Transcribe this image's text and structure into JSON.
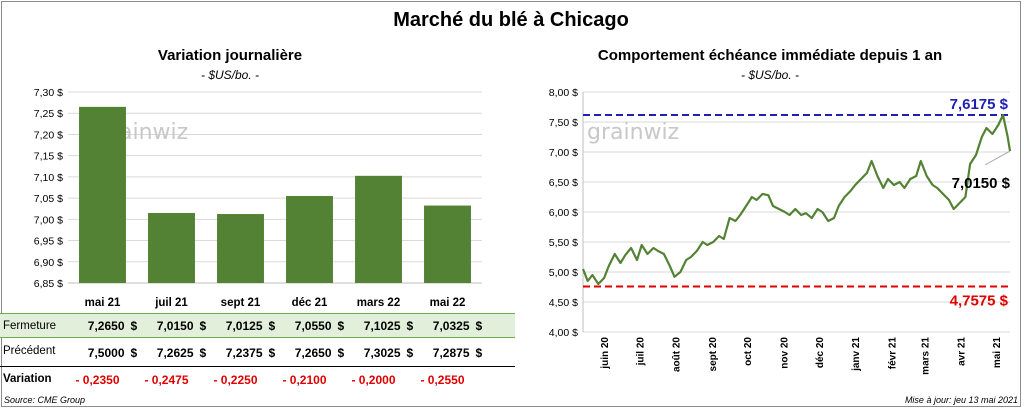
{
  "title": "Marché du blé à Chicago",
  "left_chart": {
    "title": "Variation  journalière",
    "subtitle": "- $US/bo. -",
    "watermark": "grainwiz"
  },
  "right_chart": {
    "title": "Comportement  échéance immédiate depuis 1 an",
    "subtitle": "- $US/bo. -",
    "watermark": "grainwiz",
    "max_label": "7,6175 $",
    "min_label": "4,7575 $",
    "last_label": "7,0150 $"
  },
  "table": {
    "row_labels": {
      "close": "Fermeture",
      "prev": "Précédent",
      "var": "Variation"
    },
    "dollar": "$",
    "close": [
      "7,2650",
      "7,0150",
      "7,0125",
      "7,0550",
      "7,1025",
      "7,0325"
    ],
    "prev": [
      "7,5000",
      "7,2625",
      "7,2375",
      "7,2650",
      "7,3025",
      "7,2875"
    ],
    "var": [
      "- 0,2350",
      "- 0,2475",
      "- 0,2250",
      "- 0,2100",
      "- 0,2000",
      "- 0,2550"
    ]
  },
  "footer": {
    "source": "Source: CME Group",
    "updated": "Mise à jour: jeu 13 mai 2021"
  },
  "colors": {
    "bar": "#548235",
    "line": "#548235",
    "max_line": "#1f1fb4",
    "min_line": "#e00000",
    "close_row_bg": "#e2efda"
  },
  "chart_data": [
    {
      "type": "bar",
      "title": "Variation  journalière",
      "subtitle": "- $US/bo. -",
      "categories": [
        "mai 21",
        "juil 21",
        "sept 21",
        "déc 21",
        "mars 22",
        "mai 22"
      ],
      "values": [
        7.265,
        7.015,
        7.0125,
        7.055,
        7.1025,
        7.0325
      ],
      "ylim": [
        6.85,
        7.3
      ],
      "yticks": [
        "6,85 $",
        "6,90 $",
        "6,95 $",
        "7,00 $",
        "7,05 $",
        "7,10 $",
        "7,15 $",
        "7,20 $",
        "7,25 $",
        "7,30 $"
      ],
      "grid": true
    },
    {
      "type": "line",
      "title": "Comportement  échéance immédiate depuis 1 an",
      "subtitle": "- $US/bo. -",
      "ylim": [
        4.0,
        8.0
      ],
      "yticks": [
        "4,00 $",
        "4,50 $",
        "5,00 $",
        "5,50 $",
        "6,00 $",
        "6,50 $",
        "7,00 $",
        "7,50 $",
        "8,00 $"
      ],
      "xticks": [
        "juin 20",
        "juil 20",
        "août 20",
        "sept 20",
        "oct 20",
        "nov 20",
        "déc 20",
        "janv 21",
        "févr 21",
        "mars 21",
        "avr 21",
        "mai 21"
      ],
      "x_range": [
        "2020-05-14",
        "2021-05-13"
      ],
      "max": 7.6175,
      "min": 4.7575,
      "last": 7.015,
      "series": [
        {
          "points": [
            [
              "2020-05-14",
              5.05
            ],
            [
              "2020-05-18",
              4.85
            ],
            [
              "2020-05-22",
              4.95
            ],
            [
              "2020-05-27",
              4.8
            ],
            [
              "2020-06-01",
              4.9
            ],
            [
              "2020-06-05",
              5.1
            ],
            [
              "2020-06-10",
              5.3
            ],
            [
              "2020-06-15",
              5.15
            ],
            [
              "2020-06-19",
              5.28
            ],
            [
              "2020-06-24",
              5.4
            ],
            [
              "2020-06-29",
              5.2
            ],
            [
              "2020-07-03",
              5.45
            ],
            [
              "2020-07-08",
              5.3
            ],
            [
              "2020-07-13",
              5.4
            ],
            [
              "2020-07-17",
              5.35
            ],
            [
              "2020-07-22",
              5.3
            ],
            [
              "2020-07-27",
              5.1
            ],
            [
              "2020-07-31",
              4.92
            ],
            [
              "2020-08-05",
              5.0
            ],
            [
              "2020-08-10",
              5.2
            ],
            [
              "2020-08-14",
              5.25
            ],
            [
              "2020-08-19",
              5.35
            ],
            [
              "2020-08-24",
              5.5
            ],
            [
              "2020-08-28",
              5.45
            ],
            [
              "2020-09-02",
              5.5
            ],
            [
              "2020-09-07",
              5.6
            ],
            [
              "2020-09-11",
              5.55
            ],
            [
              "2020-09-16",
              5.9
            ],
            [
              "2020-09-21",
              5.85
            ],
            [
              "2020-09-25",
              5.95
            ],
            [
              "2020-09-30",
              6.1
            ],
            [
              "2020-10-05",
              6.25
            ],
            [
              "2020-10-09",
              6.2
            ],
            [
              "2020-10-14",
              6.3
            ],
            [
              "2020-10-19",
              6.28
            ],
            [
              "2020-10-23",
              6.1
            ],
            [
              "2020-10-28",
              6.05
            ],
            [
              "2020-11-02",
              6.0
            ],
            [
              "2020-11-06",
              5.95
            ],
            [
              "2020-11-11",
              6.05
            ],
            [
              "2020-11-16",
              5.95
            ],
            [
              "2020-11-20",
              5.98
            ],
            [
              "2020-11-25",
              5.9
            ],
            [
              "2020-11-30",
              6.05
            ],
            [
              "2020-12-04",
              6.0
            ],
            [
              "2020-12-09",
              5.85
            ],
            [
              "2020-12-14",
              5.9
            ],
            [
              "2020-12-18",
              6.1
            ],
            [
              "2020-12-23",
              6.25
            ],
            [
              "2020-12-28",
              6.35
            ],
            [
              "2021-01-01",
              6.45
            ],
            [
              "2021-01-06",
              6.55
            ],
            [
              "2021-01-11",
              6.65
            ],
            [
              "2021-01-15",
              6.85
            ],
            [
              "2021-01-20",
              6.6
            ],
            [
              "2021-01-25",
              6.4
            ],
            [
              "2021-01-29",
              6.55
            ],
            [
              "2021-02-03",
              6.45
            ],
            [
              "2021-02-08",
              6.5
            ],
            [
              "2021-02-12",
              6.4
            ],
            [
              "2021-02-17",
              6.55
            ],
            [
              "2021-02-22",
              6.6
            ],
            [
              "2021-02-26",
              6.85
            ],
            [
              "2021-03-03",
              6.6
            ],
            [
              "2021-03-08",
              6.45
            ],
            [
              "2021-03-12",
              6.4
            ],
            [
              "2021-03-17",
              6.3
            ],
            [
              "2021-03-22",
              6.2
            ],
            [
              "2021-03-26",
              6.05
            ],
            [
              "2021-03-31",
              6.15
            ],
            [
              "2021-04-05",
              6.25
            ],
            [
              "2021-04-09",
              6.8
            ],
            [
              "2021-04-14",
              6.95
            ],
            [
              "2021-04-19",
              7.25
            ],
            [
              "2021-04-23",
              7.4
            ],
            [
              "2021-04-28",
              7.3
            ],
            [
              "2021-05-03",
              7.45
            ],
            [
              "2021-05-07",
              7.6175
            ],
            [
              "2021-05-11",
              7.25
            ],
            [
              "2021-05-13",
              7.015
            ]
          ]
        }
      ]
    }
  ]
}
